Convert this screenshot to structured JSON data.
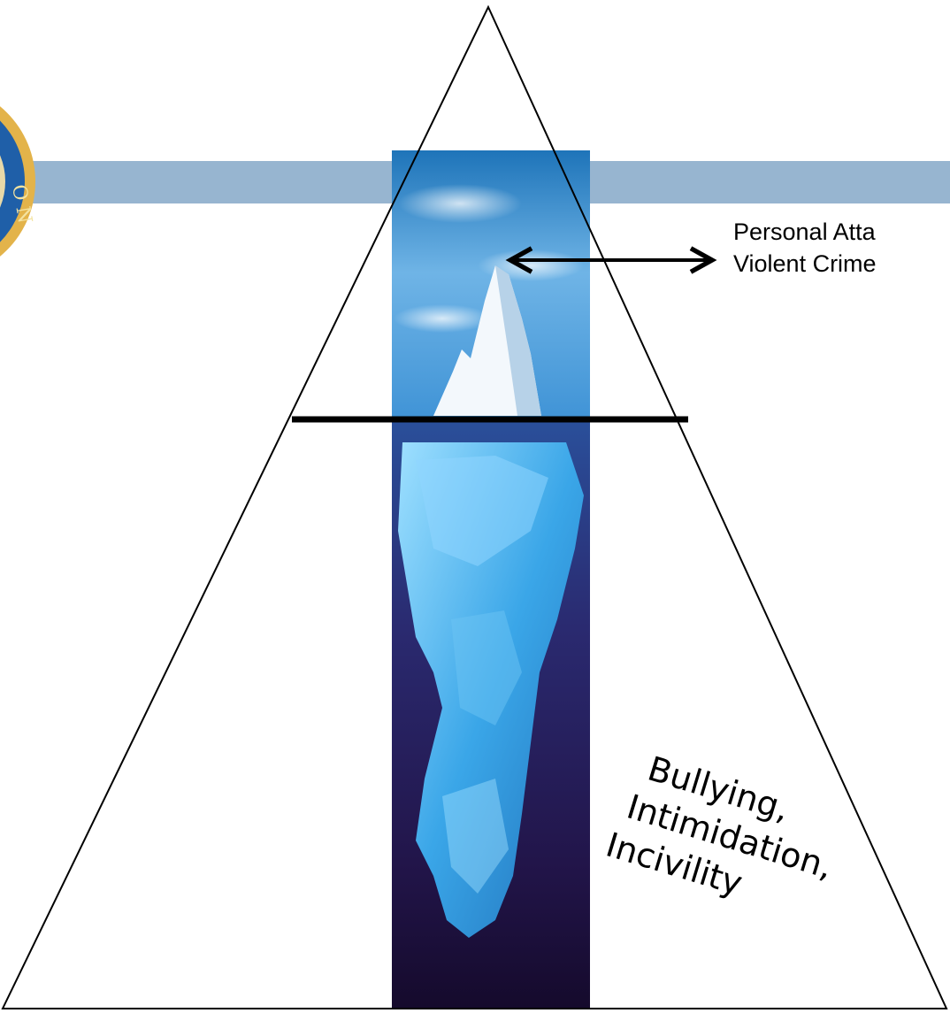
{
  "diagram": {
    "top_label_lines": [
      "Personal Atta",
      "Violent Crime"
    ],
    "bottom_label_lines": [
      "Bullying,",
      "Intimidation,",
      "Incivility"
    ]
  },
  "colors": {
    "header_band": "#97b5d0",
    "seal_gold": "#e3b34a",
    "seal_blue": "#1f5fa8",
    "sky_top": "#1e74b9",
    "sky_mid": "#6fb4e6",
    "water_deep": "#1c0f3b",
    "ice": "#4fb7ee"
  },
  "icons": {
    "seal": "partial-seal-logo",
    "arrow": "double-headed-arrow"
  }
}
